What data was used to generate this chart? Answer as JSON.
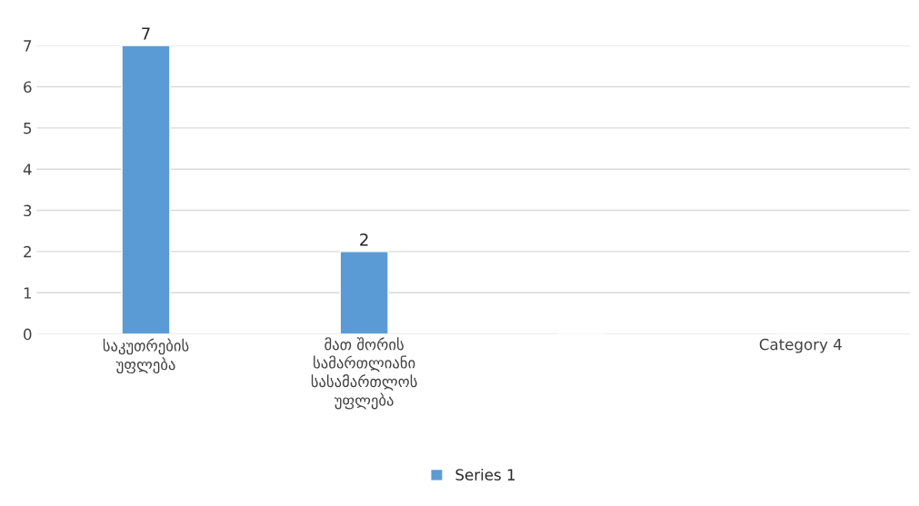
{
  "chart_data": {
    "type": "bar",
    "categories": [
      "საკუთრების\nუფლება",
      "მათ შორის\nსამართლიანი\nსასამართლოს\nუფლება",
      null,
      "Category 4"
    ],
    "series": [
      {
        "name": "Series 1",
        "color": "#5b9bd5",
        "values": [
          7,
          2,
          null,
          null
        ]
      }
    ],
    "ylim": [
      0,
      7
    ],
    "yticks": [
      0,
      1,
      2,
      3,
      4,
      5,
      6,
      7
    ],
    "grid": "y",
    "legend": "bottom",
    "data_labels": true
  }
}
